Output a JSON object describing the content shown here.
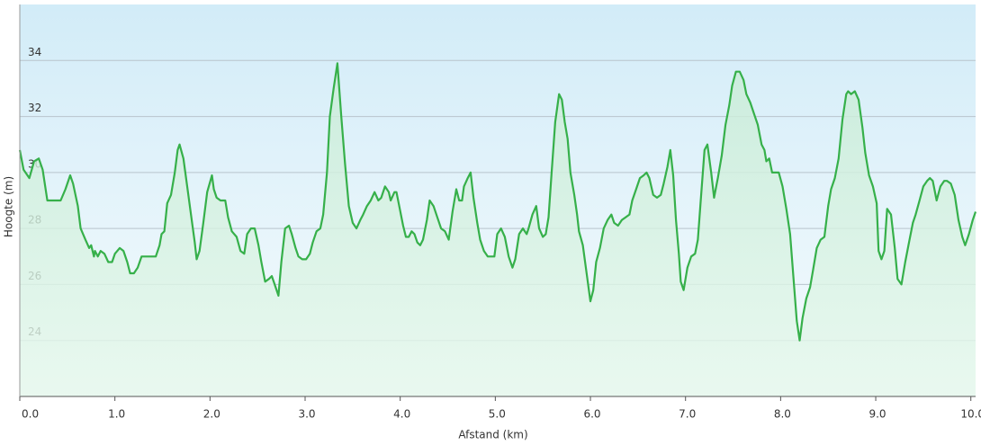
{
  "chart_data": {
    "type": "area-line",
    "x_label": "Afstand  (km)",
    "y_label": "Hoogte (m)",
    "color": "#36b04a",
    "x": [
      0,
      0.04,
      0.1,
      0.15,
      0.2,
      0.24,
      0.29,
      0.36,
      0.43,
      0.48,
      0.53,
      0.56,
      0.61,
      0.64,
      0.69,
      0.73,
      0.75,
      0.78,
      0.79,
      0.82,
      0.85,
      0.89,
      0.93,
      0.97,
      1.0,
      1.05,
      1.09,
      1.13,
      1.16,
      1.2,
      1.24,
      1.28,
      1.32,
      1.38,
      1.43,
      1.47,
      1.49,
      1.52,
      1.55,
      1.59,
      1.63,
      1.66,
      1.68,
      1.72,
      1.76,
      1.8,
      1.84,
      1.86,
      1.89,
      1.93,
      1.97,
      2.02,
      2.04,
      2.07,
      2.11,
      2.16,
      2.19,
      2.23,
      2.28,
      2.32,
      2.36,
      2.39,
      2.43,
      2.47,
      2.51,
      2.54,
      2.58,
      2.62,
      2.65,
      2.68,
      2.72,
      2.75,
      2.79,
      2.83,
      2.86,
      2.9,
      2.93,
      2.97,
      3.01,
      3.05,
      3.08,
      3.12,
      3.16,
      3.19,
      3.23,
      3.26,
      3.3,
      3.34,
      3.38,
      3.42,
      3.46,
      3.5,
      3.54,
      3.58,
      3.61,
      3.65,
      3.69,
      3.73,
      3.77,
      3.8,
      3.84,
      3.88,
      3.9,
      3.94,
      3.96,
      3.99,
      4.03,
      4.06,
      4.09,
      4.12,
      4.15,
      4.18,
      4.21,
      4.24,
      4.28,
      4.31,
      4.35,
      4.39,
      4.43,
      4.47,
      4.51,
      4.55,
      4.59,
      4.62,
      4.65,
      4.67,
      4.71,
      4.74,
      4.77,
      4.81,
      4.84,
      4.88,
      4.92,
      4.96,
      4.99,
      5.02,
      5.06,
      5.1,
      5.14,
      5.18,
      5.21,
      5.25,
      5.29,
      5.33,
      5.35,
      5.39,
      5.43,
      5.46,
      5.5,
      5.53,
      5.56,
      5.59,
      5.63,
      5.67,
      5.7,
      5.73,
      5.76,
      5.79,
      5.83,
      5.86,
      5.88,
      5.92,
      5.96,
      6.0,
      6.03,
      6.06,
      6.1,
      6.14,
      6.18,
      6.22,
      6.25,
      6.29,
      6.33,
      6.37,
      6.41,
      6.44,
      6.48,
      6.52,
      6.56,
      6.59,
      6.62,
      6.66,
      6.7,
      6.74,
      6.77,
      6.81,
      6.84,
      6.87,
      6.9,
      6.93,
      6.95,
      6.98,
      7.02,
      7.06,
      7.1,
      7.13,
      7.16,
      7.2,
      7.23,
      7.27,
      7.3,
      7.34,
      7.38,
      7.42,
      7.46,
      7.49,
      7.53,
      7.57,
      7.61,
      7.64,
      7.68,
      7.72,
      7.76,
      7.8,
      7.83,
      7.85,
      7.88,
      7.91,
      7.95,
      7.98,
      8.02,
      8.06,
      8.1,
      8.14,
      8.17,
      8.2,
      8.23,
      8.27,
      8.31,
      8.34,
      8.38,
      8.42,
      8.46,
      8.5,
      8.53,
      8.57,
      8.61,
      8.65,
      8.69,
      8.71,
      8.74,
      8.78,
      8.82,
      8.86,
      8.89,
      8.93,
      8.97,
      9.01,
      9.03,
      9.06,
      9.09,
      9.12,
      9.16,
      9.2,
      9.23,
      9.27,
      9.31,
      9.35,
      9.39,
      9.42,
      9.46,
      9.5,
      9.54,
      9.57,
      9.6,
      9.64,
      9.68,
      9.72,
      9.75,
      9.79,
      9.83,
      9.87,
      9.91,
      9.94,
      9.98,
      10.02,
      10.05
    ],
    "values": [
      30.8,
      30.1,
      29.8,
      30.4,
      30.5,
      30.1,
      29.0,
      29.0,
      29.0,
      29.4,
      29.9,
      29.6,
      28.8,
      28.0,
      27.6,
      27.3,
      27.4,
      27.0,
      27.2,
      27.0,
      27.2,
      27.1,
      26.8,
      26.8,
      27.1,
      27.3,
      27.2,
      26.8,
      26.4,
      26.4,
      26.6,
      27.0,
      27.0,
      27.0,
      27.0,
      27.4,
      27.8,
      27.9,
      28.9,
      29.2,
      30.0,
      30.8,
      31.0,
      30.5,
      29.5,
      28.5,
      27.5,
      26.9,
      27.2,
      28.2,
      29.3,
      29.9,
      29.4,
      29.1,
      29.0,
      29.0,
      28.4,
      27.9,
      27.7,
      27.2,
      27.1,
      27.8,
      28.0,
      28.0,
      27.4,
      26.8,
      26.1,
      26.2,
      26.3,
      26.0,
      25.6,
      26.8,
      28.0,
      28.1,
      27.8,
      27.3,
      27.0,
      26.9,
      26.9,
      27.1,
      27.5,
      27.9,
      28.0,
      28.5,
      30.0,
      32.0,
      33.0,
      33.9,
      32.0,
      30.3,
      28.8,
      28.2,
      28.0,
      28.3,
      28.5,
      28.8,
      29.0,
      29.3,
      29.0,
      29.1,
      29.5,
      29.3,
      29.0,
      29.3,
      29.3,
      28.8,
      28.1,
      27.7,
      27.7,
      27.9,
      27.8,
      27.5,
      27.4,
      27.6,
      28.3,
      29.0,
      28.8,
      28.4,
      28.0,
      27.9,
      27.6,
      28.6,
      29.4,
      29.0,
      29.0,
      29.5,
      29.8,
      30.0,
      29.1,
      28.2,
      27.6,
      27.2,
      27.0,
      27.0,
      27.0,
      27.8,
      28.0,
      27.7,
      27.0,
      26.6,
      26.9,
      27.8,
      28.0,
      27.8,
      28.0,
      28.5,
      28.8,
      28.0,
      27.7,
      27.8,
      28.4,
      29.9,
      31.8,
      32.8,
      32.6,
      31.8,
      31.2,
      30.0,
      29.2,
      28.5,
      27.9,
      27.4,
      26.4,
      25.4,
      25.8,
      26.8,
      27.3,
      28.0,
      28.3,
      28.5,
      28.2,
      28.1,
      28.3,
      28.4,
      28.5,
      29.0,
      29.4,
      29.8,
      29.9,
      30.0,
      29.8,
      29.2,
      29.1,
      29.2,
      29.6,
      30.2,
      30.8,
      29.9,
      28.3,
      27.1,
      26.1,
      25.8,
      26.6,
      27.0,
      27.1,
      27.6,
      29.0,
      30.8,
      31.0,
      30.0,
      29.1,
      29.8,
      30.6,
      31.7,
      32.4,
      33.1,
      33.6,
      33.6,
      33.3,
      32.8,
      32.5,
      32.1,
      31.7,
      31.0,
      30.8,
      30.4,
      30.5,
      30.0,
      30.0,
      30.0,
      29.5,
      28.7,
      27.8,
      26.0,
      24.7,
      24.0,
      24.8,
      25.5,
      25.9,
      26.5,
      27.3,
      27.6,
      27.7,
      28.8,
      29.4,
      29.8,
      30.5,
      31.9,
      32.8,
      32.9,
      32.8,
      32.9,
      32.6,
      31.6,
      30.7,
      29.9,
      29.5,
      28.9,
      27.2,
      26.9,
      27.2,
      28.7,
      28.5,
      27.3,
      26.2,
      26.0,
      26.8,
      27.5,
      28.2,
      28.5,
      29.0,
      29.5,
      29.7,
      29.8,
      29.7,
      29.0,
      29.5,
      29.7,
      29.7,
      29.6,
      29.2,
      28.3,
      27.7,
      27.4,
      27.8,
      28.3,
      28.6
    ],
    "xlim": [
      0,
      10.05
    ],
    "xticks": [
      {
        "value": 0,
        "label": "0.0"
      },
      {
        "value": 1,
        "label": "1.0"
      },
      {
        "value": 2,
        "label": "2.0"
      },
      {
        "value": 3,
        "label": "3.0"
      },
      {
        "value": 4,
        "label": "4.0"
      },
      {
        "value": 5,
        "label": "5.0"
      },
      {
        "value": 6,
        "label": "6.0"
      },
      {
        "value": 7,
        "label": "7.0"
      },
      {
        "value": 8,
        "label": "8.0"
      },
      {
        "value": 9,
        "label": "9.0"
      },
      {
        "value": 10,
        "label": "10.0"
      }
    ],
    "ylim": [
      22,
      36
    ],
    "yticks": [
      24,
      26,
      28,
      30,
      32,
      34
    ],
    "grid": true
  }
}
